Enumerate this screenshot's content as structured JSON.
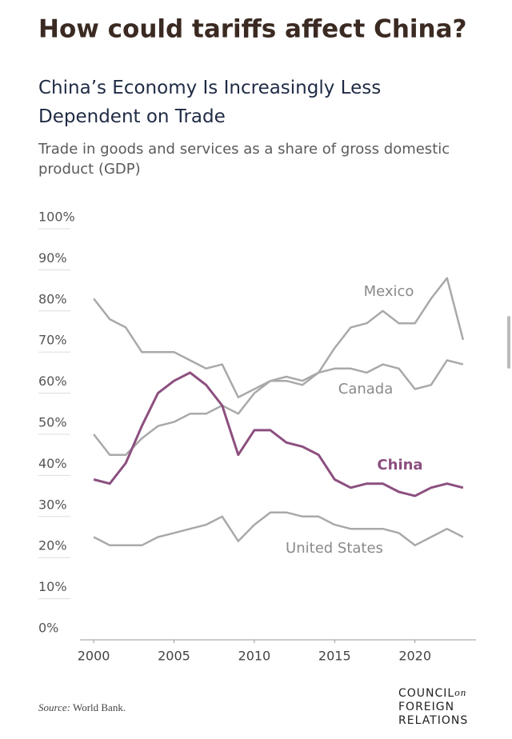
{
  "title": "How could tariffs affect China?",
  "chart_data": {
    "type": "line",
    "title": "China’s Economy Is Increasingly Less Dependent on Trade",
    "subtitle": "Trade in goods and services as a share of gross domestic product (GDP)",
    "x": [
      2000,
      2001,
      2002,
      2003,
      2004,
      2005,
      2006,
      2007,
      2008,
      2009,
      2010,
      2011,
      2012,
      2013,
      2014,
      2015,
      2016,
      2017,
      2018,
      2019,
      2020,
      2021,
      2022,
      2023
    ],
    "series": [
      {
        "name": "Mexico",
        "color": "#a9a9a9",
        "values": [
          83,
          78,
          76,
          70,
          70,
          70,
          68,
          66,
          67,
          59,
          61,
          63,
          63,
          62,
          65,
          71,
          76,
          77,
          80,
          77,
          77,
          83,
          88,
          73
        ]
      },
      {
        "name": "Canada",
        "color": "#a9a9a9",
        "values": [
          50,
          45,
          45,
          49,
          52,
          53,
          55,
          55,
          57,
          55,
          60,
          63,
          64,
          63,
          65,
          66,
          66,
          65,
          67,
          66,
          61,
          62,
          68,
          67
        ]
      },
      {
        "name": "China",
        "color": "#8c4f7f",
        "values": [
          39,
          38,
          43,
          52,
          60,
          63,
          65,
          62,
          57,
          45,
          51,
          51,
          48,
          47,
          45,
          39,
          37,
          38,
          38,
          36,
          35,
          37,
          38,
          37
        ]
      },
      {
        "name": "United States",
        "color": "#a9a9a9",
        "values": [
          25,
          23,
          23,
          23,
          25,
          26,
          27,
          28,
          30,
          24,
          28,
          31,
          31,
          30,
          30,
          28,
          27,
          27,
          27,
          26,
          23,
          25,
          27,
          25
        ]
      }
    ],
    "xlim": [
      1999,
      2024
    ],
    "xticks": [
      2000,
      2005,
      2010,
      2015,
      2020
    ],
    "ylim": [
      0,
      100
    ],
    "yticks": [
      {
        "value": 0,
        "label": "0%"
      },
      {
        "value": 10,
        "label": "10%"
      },
      {
        "value": 20,
        "label": "20%"
      },
      {
        "value": 30,
        "label": "30%"
      },
      {
        "value": 40,
        "label": "40%"
      },
      {
        "value": 50,
        "label": "50%"
      },
      {
        "value": 60,
        "label": "60%"
      },
      {
        "value": 70,
        "label": "70%"
      },
      {
        "value": 80,
        "label": "80%"
      },
      {
        "value": 90,
        "label": "90%"
      },
      {
        "value": 100,
        "label": "100%"
      }
    ],
    "source_label": "Source:",
    "source": "World Bank."
  },
  "logo": {
    "line1": "COUNCIL",
    "on": "on",
    "line2": "FOREIGN",
    "line3": "RELATIONS"
  }
}
